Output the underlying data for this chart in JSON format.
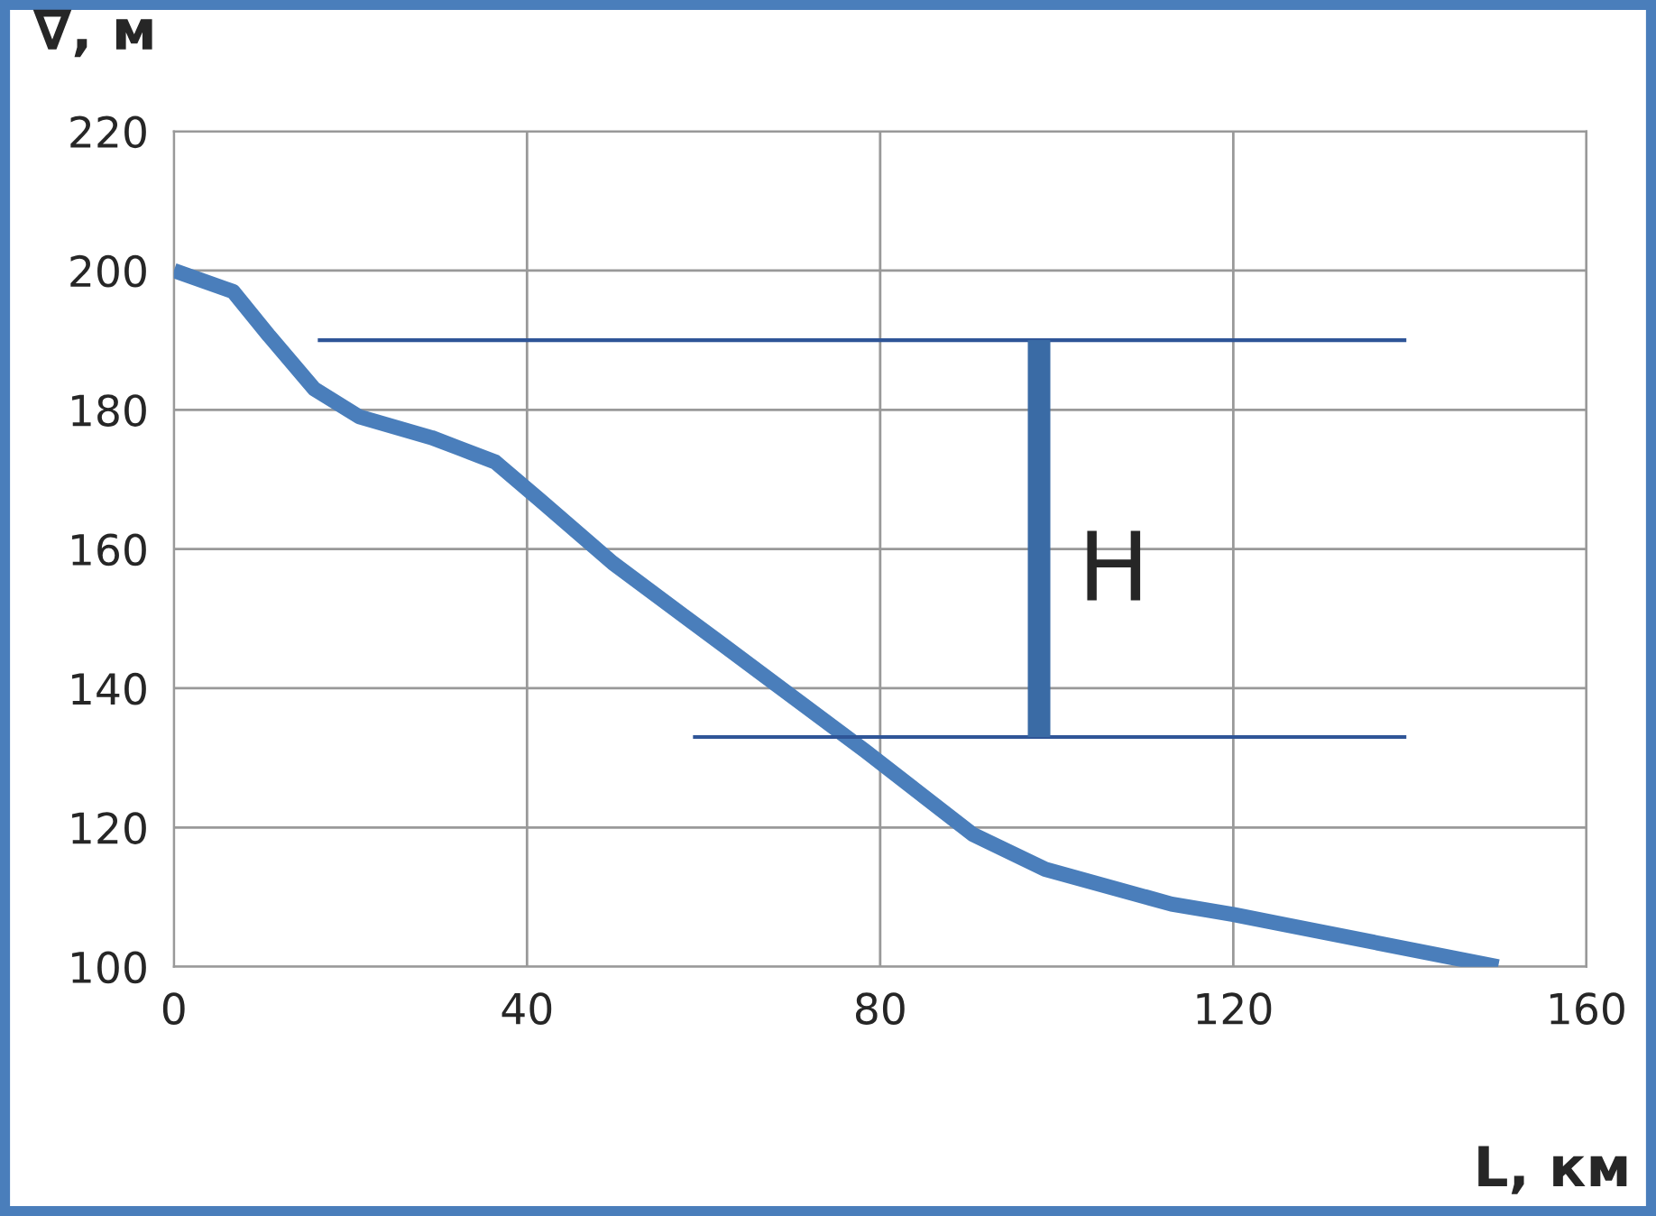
{
  "chart_data": {
    "type": "line",
    "xlabel": "L, км",
    "ylabel": "∇, м",
    "xlim": [
      0,
      160
    ],
    "ylim": [
      100,
      220
    ],
    "xticks": [
      0,
      40,
      80,
      120,
      160
    ],
    "yticks": [
      100,
      120,
      140,
      160,
      180,
      200,
      220
    ],
    "grid": true,
    "marker": "none",
    "line_style": "solid",
    "series": [
      {
        "color": "#4a7ebb",
        "x": [
          0,
          6.7,
          10.8,
          15.9,
          21,
          29.2,
          36.4,
          41.5,
          49.7,
          61.9,
          78.3,
          90.5,
          98.7,
          113,
          120,
          150
        ],
        "values": [
          200,
          197,
          190.6,
          183,
          179,
          176,
          172.5,
          167,
          158,
          146.5,
          131,
          119,
          114,
          109,
          107.5,
          100
        ]
      },
      {
        "color": "#2f5597",
        "x": [
          16.3,
          139.6
        ],
        "values": [
          190,
          190
        ]
      },
      {
        "color": "#2f5597",
        "x": [
          58.8,
          139.6
        ],
        "values": [
          133,
          133
        ]
      },
      {
        "color": "#3a6ba5",
        "x": [
          98,
          98
        ],
        "values": [
          133,
          190
        ]
      }
    ],
    "annotations": [
      "H"
    ]
  }
}
